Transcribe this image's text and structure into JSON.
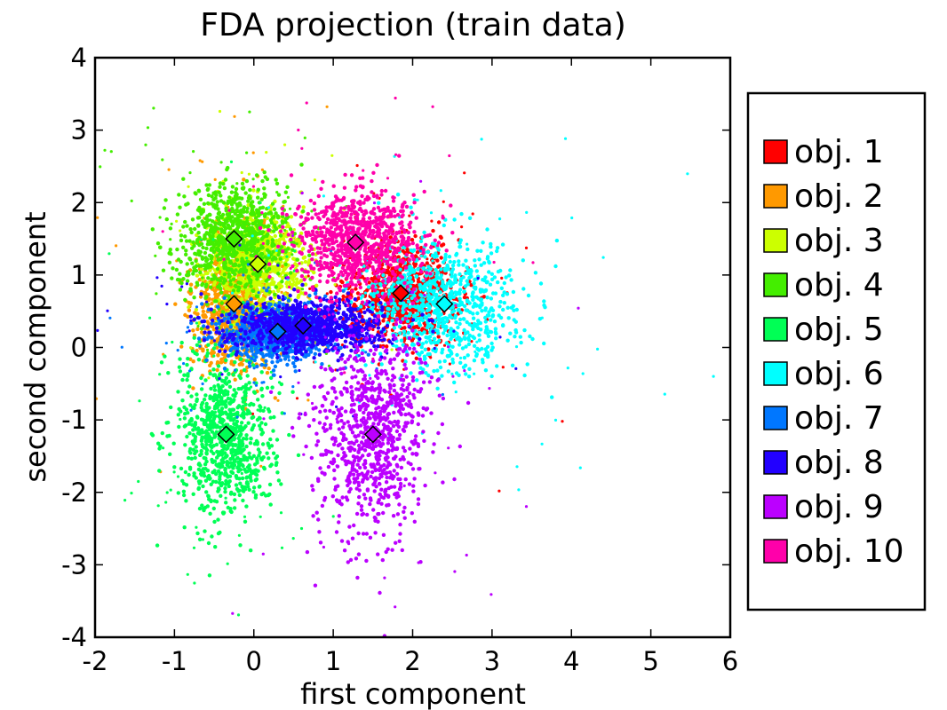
{
  "chart_data": {
    "type": "scatter",
    "title": "FDA projection (train data)",
    "xlabel": "first component",
    "ylabel": "second component",
    "xlim": [
      -2,
      6
    ],
    "ylim": [
      -4,
      4
    ],
    "x_ticks": [
      -2,
      -1,
      0,
      1,
      2,
      3,
      4,
      5,
      6
    ],
    "y_ticks": [
      -4,
      -3,
      -2,
      -1,
      0,
      1,
      2,
      3,
      4
    ],
    "x_tick_labels": [
      "-2",
      "-1",
      "0",
      "1",
      "2",
      "3",
      "4",
      "5",
      "6"
    ],
    "y_tick_labels": [
      "-4",
      "-3",
      "-2",
      "-1",
      "0",
      "1",
      "2",
      "3",
      "4"
    ],
    "grid": false,
    "legend_position": "right",
    "series": [
      {
        "name": "obj. 1",
        "color": "#ff0000",
        "centroid": {
          "x": 1.85,
          "y": 0.75
        },
        "spread": [
          0.35,
          0.35
        ]
      },
      {
        "name": "obj. 2",
        "color": "#ff9900",
        "centroid": {
          "x": -0.25,
          "y": 0.6
        },
        "spread": [
          0.25,
          0.45
        ]
      },
      {
        "name": "obj. 3",
        "color": "#ccff00",
        "centroid": {
          "x": 0.05,
          "y": 1.15
        },
        "spread": [
          0.3,
          0.35
        ]
      },
      {
        "name": "obj. 4",
        "color": "#44ee00",
        "centroid": {
          "x": -0.25,
          "y": 1.5
        },
        "spread": [
          0.35,
          0.4
        ]
      },
      {
        "name": "obj. 5",
        "color": "#00ff55",
        "centroid": {
          "x": -0.35,
          "y": -1.2
        },
        "spread": [
          0.3,
          0.55
        ]
      },
      {
        "name": "obj. 6",
        "color": "#00ffff",
        "centroid": {
          "x": 2.4,
          "y": 0.6
        },
        "spread": [
          0.5,
          0.45
        ]
      },
      {
        "name": "obj. 7",
        "color": "#0077ff",
        "centroid": {
          "x": 0.3,
          "y": 0.22
        },
        "spread": [
          0.35,
          0.2
        ]
      },
      {
        "name": "obj. 8",
        "color": "#2200ff",
        "centroid": {
          "x": 0.62,
          "y": 0.3
        },
        "spread": [
          0.5,
          0.18
        ]
      },
      {
        "name": "obj. 9",
        "color": "#bb00ff",
        "centroid": {
          "x": 1.5,
          "y": -1.2
        },
        "spread": [
          0.35,
          0.7
        ]
      },
      {
        "name": "obj. 10",
        "color": "#ff00aa",
        "centroid": {
          "x": 1.28,
          "y": 1.45
        },
        "spread": [
          0.4,
          0.35
        ]
      }
    ]
  }
}
